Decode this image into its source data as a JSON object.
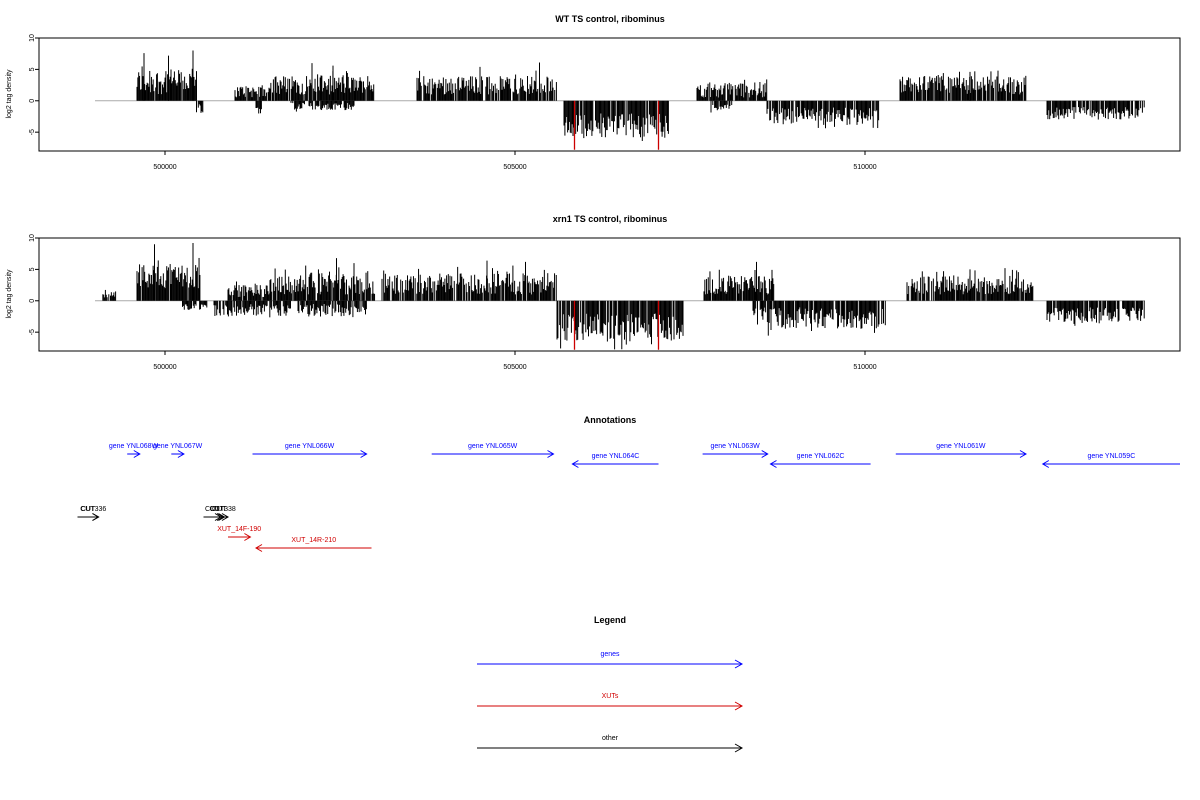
{
  "chart_data": [
    {
      "type": "bar",
      "title": "WT TS control, ribominus",
      "ylabel": "log2 tag density",
      "xlim": [
        498200,
        514500
      ],
      "ylim": [
        -8,
        10
      ],
      "x_ticks": [
        500000,
        505000,
        510000
      ],
      "x_tick_labels": [
        "500000",
        "505000",
        "510000"
      ],
      "y_ticks": [
        -5,
        0,
        5,
        10
      ],
      "y_tick_labels": [
        "-5",
        "0",
        "5",
        "10"
      ],
      "baseline": [
        499000,
        514000
      ],
      "grid": false,
      "segments": [
        {
          "start": 499600,
          "end": 500450,
          "sign": 1,
          "min": 1.0,
          "max": 5.0,
          "peaks": [
            [
              499700,
              7.6
            ],
            [
              500050,
              7.2
            ],
            [
              500400,
              8.0
            ]
          ]
        },
        {
          "start": 500450,
          "end": 500550,
          "sign": -1,
          "min": 0.5,
          "max": 2.0,
          "peaks": []
        },
        {
          "start": 501000,
          "end": 501600,
          "sign": 1,
          "min": 0.5,
          "max": 2.5,
          "peaks": []
        },
        {
          "start": 501300,
          "end": 501400,
          "sign": -1,
          "min": 1.0,
          "max": 2.5,
          "peaks": []
        },
        {
          "start": 501500,
          "end": 503000,
          "sign": 1,
          "min": 1.0,
          "max": 4.0,
          "peaks": [
            [
              502100,
              6.0
            ],
            [
              502400,
              5.6
            ]
          ]
        },
        {
          "start": 501800,
          "end": 502700,
          "sign": -1,
          "min": 0.3,
          "max": 1.5,
          "peaks": []
        },
        {
          "start": 503600,
          "end": 505600,
          "sign": 1,
          "min": 1.0,
          "max": 4.0,
          "peaks": [
            [
              504500,
              5.4
            ],
            [
              505350,
              6.1
            ]
          ]
        },
        {
          "start": 505700,
          "end": 507200,
          "sign": -1,
          "min": 2.0,
          "max": 6.0,
          "peaks": [],
          "red": [
            [
              505850,
              -7.8
            ],
            [
              507050,
              -7.8
            ]
          ]
        },
        {
          "start": 507600,
          "end": 508600,
          "sign": 1,
          "min": 0.5,
          "max": 3.0,
          "peaks": []
        },
        {
          "start": 507800,
          "end": 508100,
          "sign": -1,
          "min": 0.5,
          "max": 1.5,
          "peaks": []
        },
        {
          "start": 508600,
          "end": 510200,
          "sign": -1,
          "min": 1.0,
          "max": 3.5,
          "peaks": []
        },
        {
          "start": 510500,
          "end": 512300,
          "sign": 1,
          "min": 1.0,
          "max": 4.0,
          "peaks": [
            [
              511500,
              4.6
            ],
            [
              511900,
              4.8
            ]
          ]
        },
        {
          "start": 512600,
          "end": 514000,
          "sign": -1,
          "min": 1.0,
          "max": 3.0,
          "peaks": []
        }
      ]
    },
    {
      "type": "bar",
      "title": "xrn1 TS control, ribominus",
      "ylabel": "log2 tag density",
      "xlim": [
        498200,
        514500
      ],
      "ylim": [
        -8,
        10
      ],
      "x_ticks": [
        500000,
        505000,
        510000
      ],
      "x_tick_labels": [
        "500000",
        "505000",
        "510000"
      ],
      "y_ticks": [
        -5,
        0,
        5,
        10
      ],
      "y_tick_labels": [
        "-5",
        "0",
        "5",
        "10"
      ],
      "baseline": [
        499000,
        514000
      ],
      "grid": false,
      "segments": [
        {
          "start": 499100,
          "end": 499300,
          "sign": 1,
          "min": 0.5,
          "max": 1.5,
          "peaks": []
        },
        {
          "start": 499600,
          "end": 500500,
          "sign": 1,
          "min": 2.0,
          "max": 6.0,
          "peaks": [
            [
              499850,
              9.0
            ],
            [
              500400,
              9.2
            ]
          ]
        },
        {
          "start": 500250,
          "end": 500600,
          "sign": -1,
          "min": 0.5,
          "max": 1.5,
          "peaks": []
        },
        {
          "start": 500900,
          "end": 501500,
          "sign": 1,
          "min": 0.5,
          "max": 2.5,
          "peaks": []
        },
        {
          "start": 500700,
          "end": 501800,
          "sign": -1,
          "min": 0.5,
          "max": 2.5,
          "peaks": []
        },
        {
          "start": 501500,
          "end": 503000,
          "sign": 1,
          "min": 1.0,
          "max": 4.5,
          "peaks": [
            [
              502450,
              6.8
            ],
            [
              502700,
              6.0
            ]
          ]
        },
        {
          "start": 501900,
          "end": 502900,
          "sign": -1,
          "min": 0.5,
          "max": 2.5,
          "peaks": []
        },
        {
          "start": 503100,
          "end": 505600,
          "sign": 1,
          "min": 1.0,
          "max": 4.5,
          "peaks": [
            [
              504600,
              6.4
            ],
            [
              505150,
              6.2
            ]
          ]
        },
        {
          "start": 505600,
          "end": 507400,
          "sign": -1,
          "min": 2.0,
          "max": 6.5,
          "peaks": [],
          "red": [
            [
              505850,
              -7.8
            ],
            [
              507050,
              -7.8
            ]
          ]
        },
        {
          "start": 507700,
          "end": 508700,
          "sign": 1,
          "min": 1.0,
          "max": 4.0,
          "peaks": [
            [
              508450,
              6.2
            ]
          ]
        },
        {
          "start": 508400,
          "end": 510300,
          "sign": -1,
          "min": 1.0,
          "max": 4.5,
          "peaks": []
        },
        {
          "start": 510600,
          "end": 512400,
          "sign": 1,
          "min": 1.0,
          "max": 4.0,
          "peaks": [
            [
              511500,
              5.0
            ],
            [
              512000,
              5.2
            ]
          ]
        },
        {
          "start": 512600,
          "end": 514000,
          "sign": -1,
          "min": 1.0,
          "max": 3.5,
          "peaks": []
        }
      ]
    }
  ],
  "annotations": {
    "title": "Annotations",
    "xlim": [
      498200,
      514500
    ],
    "features": [
      {
        "label": "gene YNL068W",
        "start": 499460,
        "end": 499640,
        "strand": "+",
        "color": "#0000ff",
        "row": 0
      },
      {
        "label": "gene YNL067W",
        "start": 500090,
        "end": 500270,
        "strand": "+",
        "color": "#0000ff",
        "row": 0
      },
      {
        "label": "gene YNL066W",
        "start": 501250,
        "end": 502880,
        "strand": "+",
        "color": "#0000ff",
        "row": 0
      },
      {
        "label": "gene YNL065W",
        "start": 503810,
        "end": 505550,
        "strand": "+",
        "color": "#0000ff",
        "row": 0
      },
      {
        "label": "gene YNL064C",
        "start": 505820,
        "end": 507050,
        "strand": "-",
        "color": "#0000ff",
        "row": 1
      },
      {
        "label": "gene YNL063W",
        "start": 507680,
        "end": 508610,
        "strand": "+",
        "color": "#0000ff",
        "row": 0
      },
      {
        "label": "gene YNL062C",
        "start": 508650,
        "end": 510080,
        "strand": "-",
        "color": "#0000ff",
        "row": 1
      },
      {
        "label": "gene YNL061W",
        "start": 510440,
        "end": 512300,
        "strand": "+",
        "color": "#0000ff",
        "row": 0
      },
      {
        "label": "gene YNL059C",
        "start": 512540,
        "end": 514500,
        "strand": "-",
        "color": "#0000ff",
        "row": 1
      },
      {
        "label": "CUT",
        "start": 498750,
        "end": 499050,
        "strand": "+",
        "color": "#000000",
        "row": 2
      },
      {
        "label": "CUT336",
        "start": 498900,
        "end": 499050,
        "strand": "+",
        "color": "#000000",
        "row": 2
      },
      {
        "label": "CUT",
        "start": 500550,
        "end": 500800,
        "strand": "+",
        "color": "#000000",
        "row": 2
      },
      {
        "label": "CUT",
        "start": 500650,
        "end": 500830,
        "strand": "+",
        "color": "#000000",
        "row": 2
      },
      {
        "label": "CUT",
        "start": 500700,
        "end": 500850,
        "strand": "+",
        "color": "#000000",
        "row": 2
      },
      {
        "label": "CUT338",
        "start": 500750,
        "end": 500900,
        "strand": "+",
        "color": "#000000",
        "row": 2
      },
      {
        "label": "XUT_14F-190",
        "start": 500900,
        "end": 501220,
        "strand": "+",
        "color": "#d00000",
        "row": 3
      },
      {
        "label": "XUT_14R-210",
        "start": 501300,
        "end": 502950,
        "strand": "-",
        "color": "#d00000",
        "row": 4
      }
    ]
  },
  "legend": {
    "title": "Legend",
    "items": [
      {
        "label": "genes",
        "color": "#0000ff"
      },
      {
        "label": "XUTs",
        "color": "#d00000"
      },
      {
        "label": "other",
        "color": "#000000"
      }
    ]
  }
}
